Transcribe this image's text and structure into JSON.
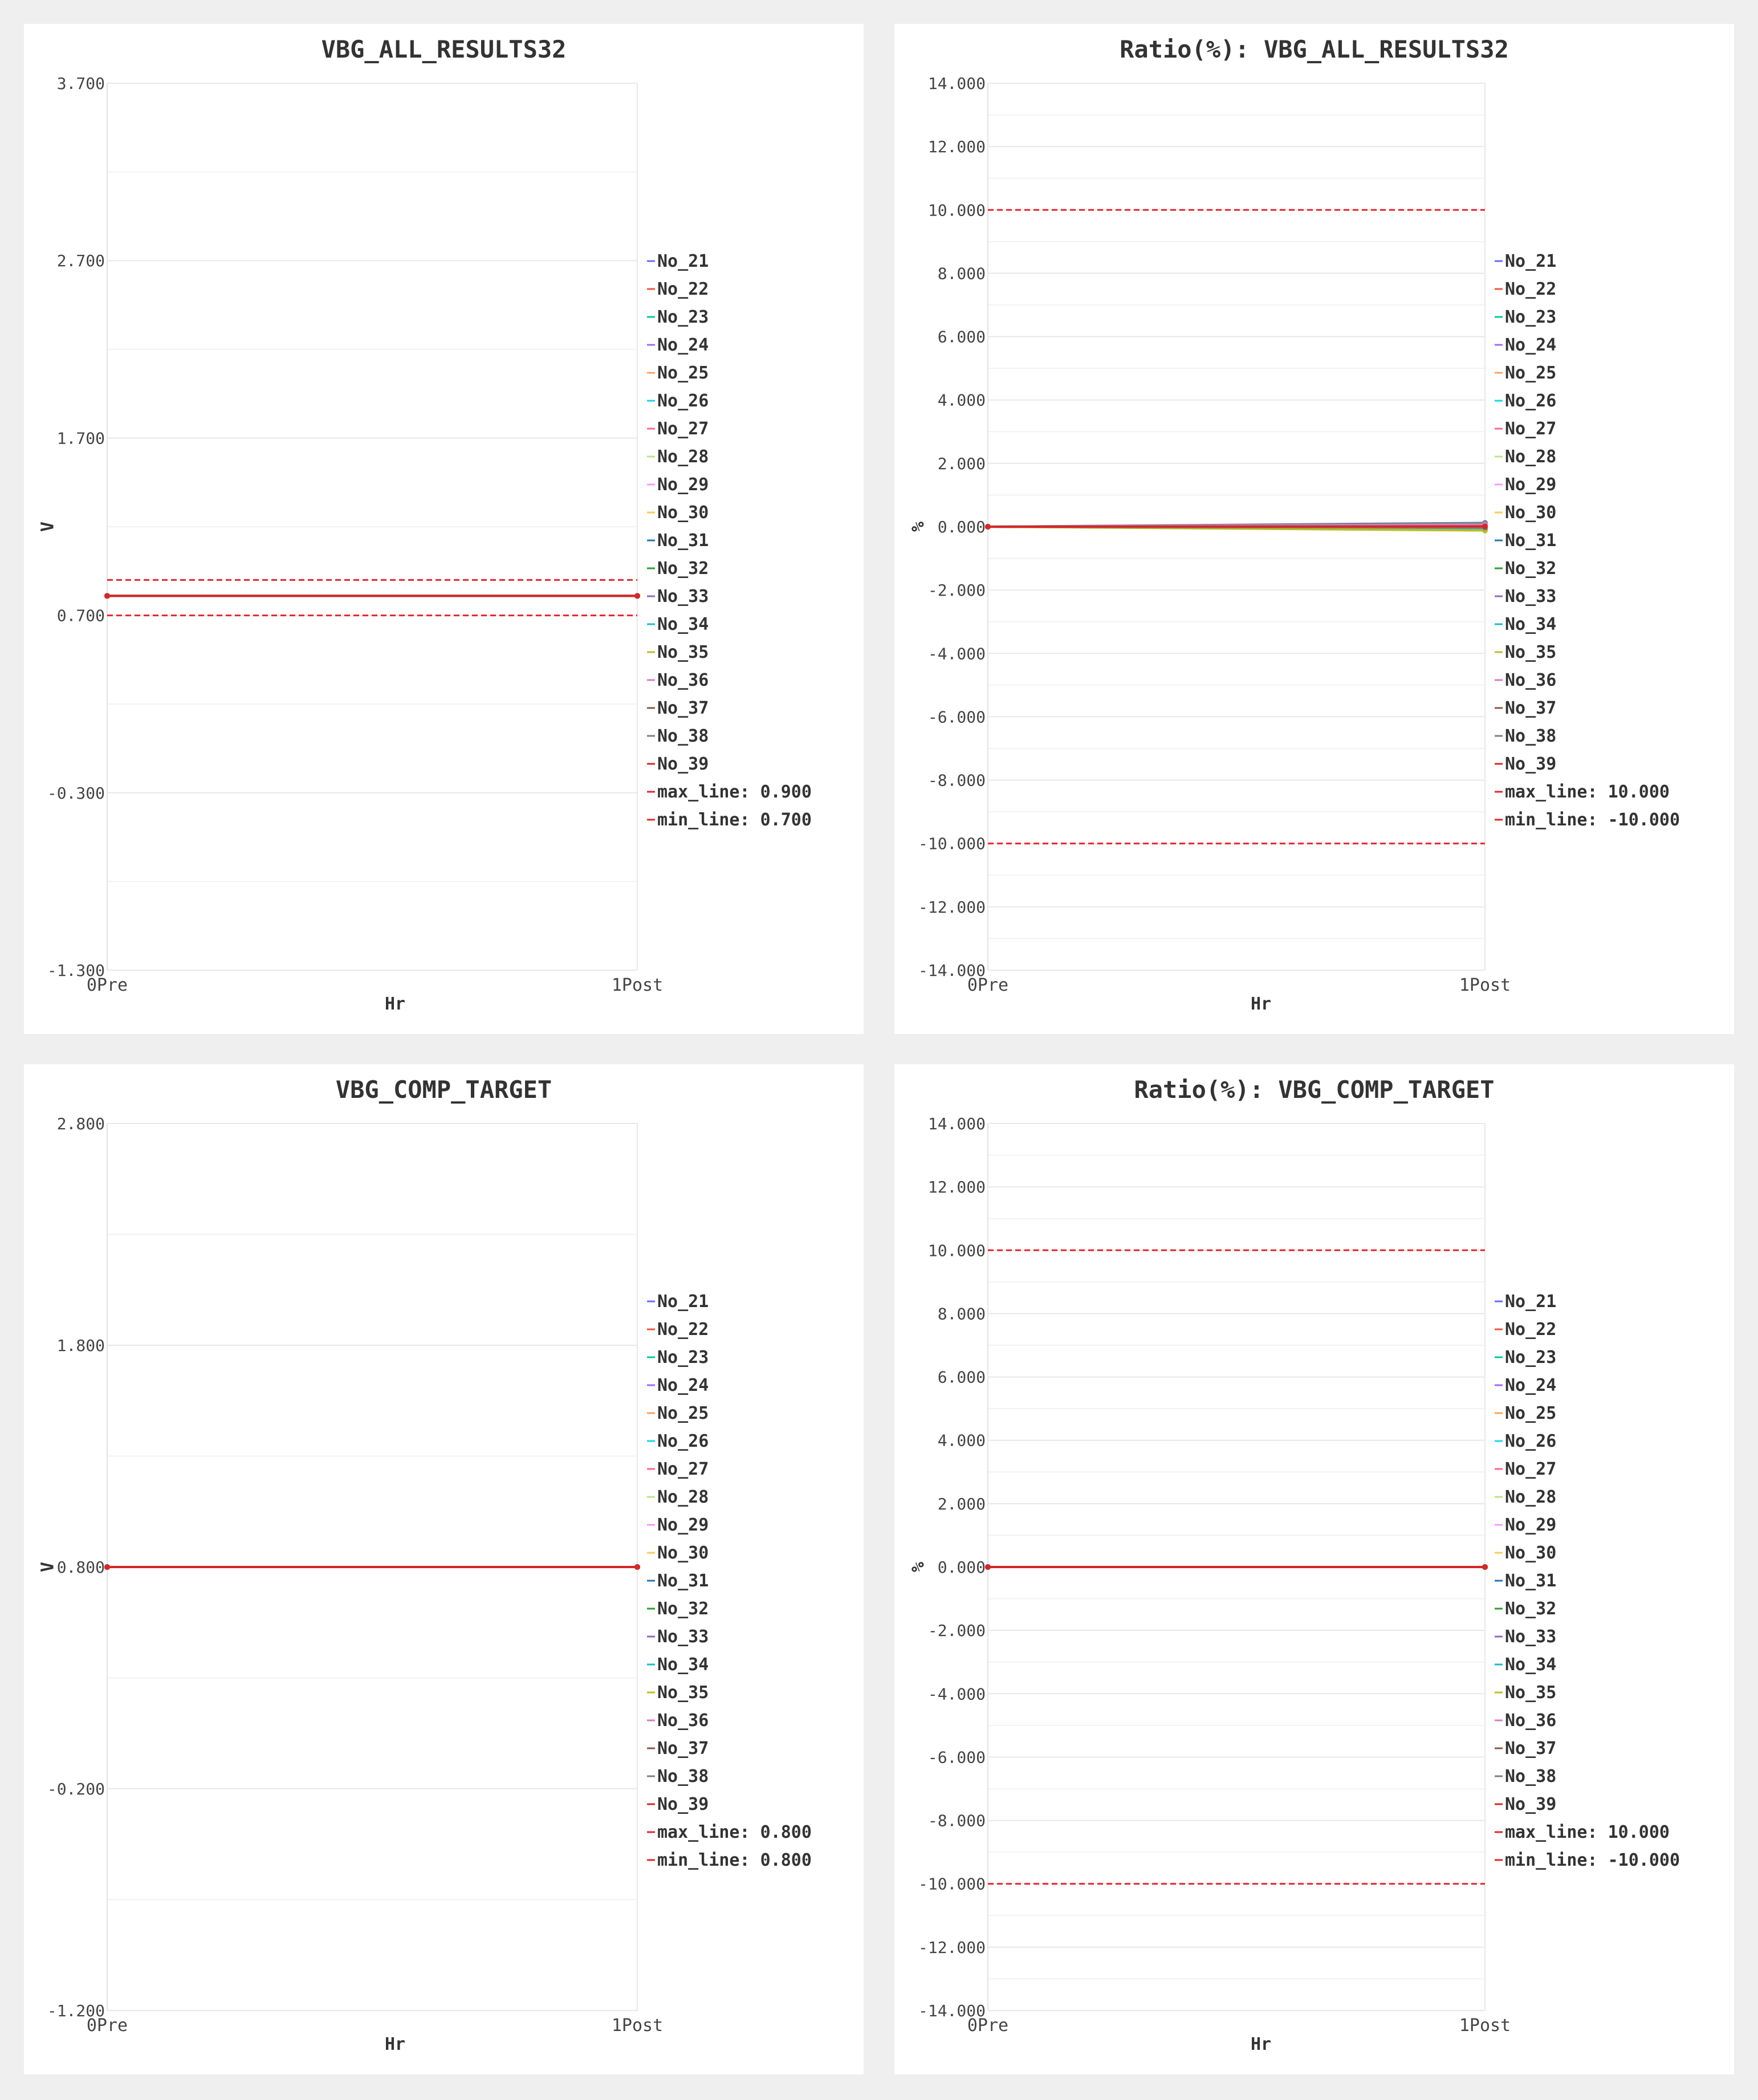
{
  "legend_names": [
    "No_21",
    "No_22",
    "No_23",
    "No_24",
    "No_25",
    "No_26",
    "No_27",
    "No_28",
    "No_29",
    "No_30",
    "No_31",
    "No_32",
    "No_33",
    "No_34",
    "No_35",
    "No_36",
    "No_37",
    "No_38",
    "No_39"
  ],
  "palette": [
    "#636efa",
    "#EF553B",
    "#00cc96",
    "#ab63fa",
    "#FFA15A",
    "#19d3f3",
    "#FF6692",
    "#B6E880",
    "#FF97FF",
    "#FECB52",
    "#1f77b4",
    "#2ca02c",
    "#9467bd",
    "#17becf",
    "#bcbd22",
    "#e377c2",
    "#8c564b",
    "#7f7f7f",
    "#d62728"
  ],
  "limit_color": "#e8232a",
  "chart_data": [
    {
      "type": "line",
      "title": "VBG_ALL_RESULTS32",
      "xlabel": "Hr",
      "ylabel": "V",
      "x": [
        "0Pre",
        "1Post"
      ],
      "ylim": [
        -1.3,
        3.7
      ],
      "yticks": [
        "3.700",
        "2.700",
        "1.700",
        "0.700",
        "-0.300",
        "-1.300"
      ],
      "series_values": [
        0.81,
        0.81
      ],
      "limits": [
        {
          "name": "max_line: 0.900",
          "value": 0.9
        },
        {
          "name": "min_line: 0.700",
          "value": 0.7
        }
      ]
    },
    {
      "type": "line",
      "title": "Ratio(%): VBG_ALL_RESULTS32",
      "xlabel": "Hr",
      "ylabel": "%",
      "x": [
        "0Pre",
        "1Post"
      ],
      "ylim": [
        -14,
        14
      ],
      "yticks": [
        "14.000",
        "12.000",
        "10.000",
        "8.000",
        "6.000",
        "4.000",
        "2.000",
        "0.000",
        "-2.000",
        "-4.000",
        "-6.000",
        "-8.000",
        "-10.000",
        "-12.000",
        "-14.000"
      ],
      "series_end_values": [
        0.12,
        0.1,
        0.08,
        0.06,
        0.05,
        0.03,
        0.02,
        0.0,
        -0.02,
        -0.04,
        -0.05,
        -0.07,
        -0.08,
        -0.1,
        -0.12,
        0.04,
        0.0,
        -0.03,
        0.01
      ],
      "limits": [
        {
          "name": "max_line: 10.000",
          "value": 10
        },
        {
          "name": "min_line: -10.000",
          "value": -10
        }
      ]
    },
    {
      "type": "line",
      "title": "VBG_COMP_TARGET",
      "xlabel": "Hr",
      "ylabel": "V",
      "x": [
        "0Pre",
        "1Post"
      ],
      "ylim": [
        -1.2,
        2.8
      ],
      "yticks": [
        "2.800",
        "1.800",
        "0.800",
        "-0.200",
        "-1.200"
      ],
      "series_values": [
        0.8,
        0.8
      ],
      "limits": [
        {
          "name": "max_line: 0.800",
          "value": 0.8
        },
        {
          "name": "min_line: 0.800",
          "value": 0.8
        }
      ]
    },
    {
      "type": "line",
      "title": "Ratio(%): VBG_COMP_TARGET",
      "xlabel": "Hr",
      "ylabel": "%",
      "x": [
        "0Pre",
        "1Post"
      ],
      "ylim": [
        -14,
        14
      ],
      "yticks": [
        "14.000",
        "12.000",
        "10.000",
        "8.000",
        "6.000",
        "4.000",
        "2.000",
        "0.000",
        "-2.000",
        "-4.000",
        "-6.000",
        "-8.000",
        "-10.000",
        "-12.000",
        "-14.000"
      ],
      "series_values": [
        0,
        0
      ],
      "limits": [
        {
          "name": "max_line: 10.000",
          "value": 10
        },
        {
          "name": "min_line: -10.000",
          "value": -10
        }
      ]
    }
  ]
}
